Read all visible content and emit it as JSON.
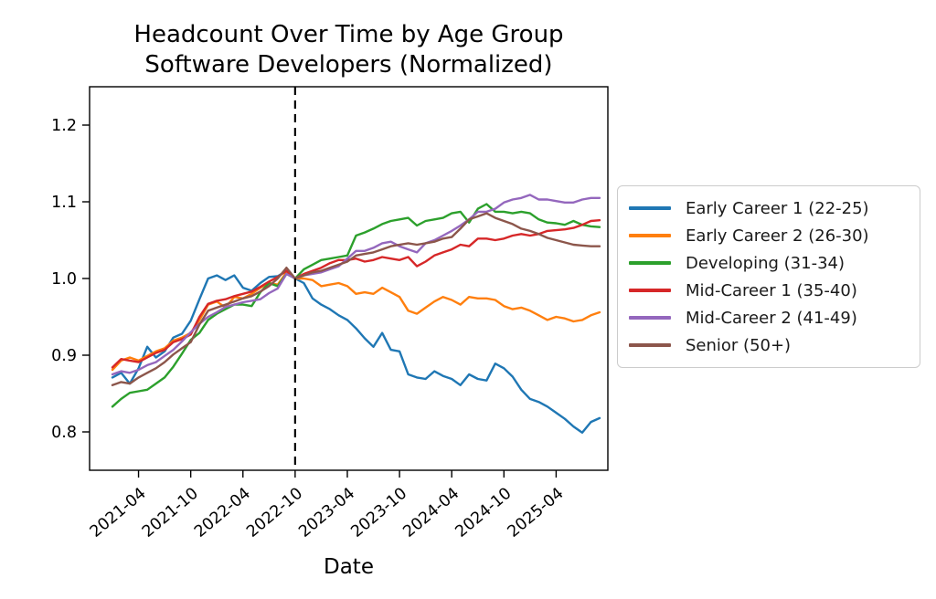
{
  "chart_data": {
    "type": "line",
    "title": "Headcount Over Time by Age Group",
    "subtitle": "Software Developers (Normalized)",
    "xlabel": "Date",
    "ylabel": "",
    "ylim": [
      0.75,
      1.25
    ],
    "grid": false,
    "legend_position": "right-outside",
    "event_line": {
      "x": "2022-10",
      "style": "dashed",
      "color": "#000000"
    },
    "x_ticks": [
      "2021-04",
      "2021-10",
      "2022-04",
      "2022-10",
      "2023-04",
      "2023-10",
      "2024-04",
      "2024-10",
      "2025-04"
    ],
    "y_ticks": [
      0.8,
      0.9,
      1.0,
      1.1,
      1.2
    ],
    "x": [
      "2021-01",
      "2021-02",
      "2021-03",
      "2021-04",
      "2021-05",
      "2021-06",
      "2021-07",
      "2021-08",
      "2021-09",
      "2021-10",
      "2021-11",
      "2021-12",
      "2022-01",
      "2022-02",
      "2022-03",
      "2022-04",
      "2022-05",
      "2022-06",
      "2022-07",
      "2022-08",
      "2022-09",
      "2022-10",
      "2022-11",
      "2022-12",
      "2023-01",
      "2023-02",
      "2023-03",
      "2023-04",
      "2023-05",
      "2023-06",
      "2023-07",
      "2023-08",
      "2023-09",
      "2023-10",
      "2023-11",
      "2023-12",
      "2024-01",
      "2024-02",
      "2024-03",
      "2024-04",
      "2024-05",
      "2024-06",
      "2024-07",
      "2024-08",
      "2024-09",
      "2024-10",
      "2024-11",
      "2024-12",
      "2025-01",
      "2025-02",
      "2025-03",
      "2025-04",
      "2025-05",
      "2025-06",
      "2025-07",
      "2025-08",
      "2025-09"
    ],
    "series": [
      {
        "name": "Early Career 1 (22-25)",
        "color": "#1f77b4",
        "values": [
          0.871,
          0.877,
          0.863,
          0.883,
          0.911,
          0.897,
          0.905,
          0.923,
          0.928,
          0.945,
          0.973,
          1.0,
          1.004,
          0.998,
          1.004,
          0.988,
          0.984,
          0.994,
          1.002,
          1.003,
          1.01,
          1.0,
          0.994,
          0.974,
          0.966,
          0.96,
          0.952,
          0.946,
          0.935,
          0.922,
          0.911,
          0.929,
          0.907,
          0.905,
          0.875,
          0.871,
          0.869,
          0.879,
          0.873,
          0.869,
          0.861,
          0.875,
          0.869,
          0.867,
          0.889,
          0.883,
          0.872,
          0.855,
          0.843,
          0.839,
          0.833,
          0.825,
          0.817,
          0.807,
          0.799,
          0.813,
          0.818
        ]
      },
      {
        "name": "Early Career 2 (26-30)",
        "color": "#ff7f0e",
        "values": [
          0.881,
          0.893,
          0.897,
          0.893,
          0.899,
          0.905,
          0.909,
          0.919,
          0.923,
          0.929,
          0.946,
          0.966,
          0.97,
          0.962,
          0.976,
          0.974,
          0.98,
          0.988,
          0.994,
          0.992,
          1.008,
          1.0,
          1.0,
          0.998,
          0.99,
          0.992,
          0.994,
          0.99,
          0.98,
          0.982,
          0.98,
          0.988,
          0.982,
          0.976,
          0.958,
          0.954,
          0.962,
          0.97,
          0.976,
          0.972,
          0.966,
          0.976,
          0.974,
          0.974,
          0.972,
          0.964,
          0.96,
          0.962,
          0.958,
          0.952,
          0.946,
          0.95,
          0.948,
          0.944,
          0.946,
          0.952,
          0.956
        ]
      },
      {
        "name": "Developing (31-34)",
        "color": "#2ca02c",
        "values": [
          0.833,
          0.843,
          0.851,
          0.853,
          0.855,
          0.863,
          0.871,
          0.885,
          0.902,
          0.92,
          0.929,
          0.946,
          0.954,
          0.96,
          0.966,
          0.966,
          0.964,
          0.982,
          0.994,
          0.99,
          1.006,
          1.0,
          1.012,
          1.018,
          1.024,
          1.026,
          1.028,
          1.03,
          1.056,
          1.06,
          1.065,
          1.071,
          1.075,
          1.077,
          1.079,
          1.069,
          1.075,
          1.077,
          1.079,
          1.085,
          1.087,
          1.073,
          1.091,
          1.097,
          1.087,
          1.087,
          1.085,
          1.087,
          1.085,
          1.077,
          1.073,
          1.072,
          1.07,
          1.075,
          1.07,
          1.068,
          1.067
        ]
      },
      {
        "name": "Mid-Career 1 (35-40)",
        "color": "#d62728",
        "values": [
          0.884,
          0.895,
          0.893,
          0.891,
          0.897,
          0.903,
          0.907,
          0.917,
          0.921,
          0.927,
          0.95,
          0.967,
          0.971,
          0.973,
          0.977,
          0.98,
          0.983,
          0.989,
          0.996,
          1.002,
          1.01,
          1.0,
          1.006,
          1.01,
          1.014,
          1.02,
          1.024,
          1.024,
          1.026,
          1.022,
          1.024,
          1.028,
          1.026,
          1.024,
          1.028,
          1.016,
          1.022,
          1.03,
          1.034,
          1.038,
          1.044,
          1.042,
          1.052,
          1.052,
          1.05,
          1.052,
          1.056,
          1.058,
          1.056,
          1.058,
          1.062,
          1.063,
          1.064,
          1.066,
          1.07,
          1.075,
          1.076
        ]
      },
      {
        "name": "Mid-Career 2 (41-49)",
        "color": "#9467bd",
        "values": [
          0.875,
          0.879,
          0.877,
          0.881,
          0.887,
          0.891,
          0.899,
          0.907,
          0.918,
          0.93,
          0.941,
          0.95,
          0.956,
          0.963,
          0.966,
          0.969,
          0.971,
          0.973,
          0.981,
          0.987,
          1.006,
          1.0,
          1.004,
          1.006,
          1.008,
          1.012,
          1.016,
          1.026,
          1.036,
          1.036,
          1.04,
          1.046,
          1.048,
          1.042,
          1.038,
          1.034,
          1.046,
          1.05,
          1.056,
          1.062,
          1.069,
          1.077,
          1.087,
          1.087,
          1.091,
          1.099,
          1.103,
          1.105,
          1.109,
          1.103,
          1.103,
          1.101,
          1.099,
          1.099,
          1.103,
          1.105,
          1.105
        ]
      },
      {
        "name": "Senior (50+)",
        "color": "#8c564b",
        "values": [
          0.861,
          0.865,
          0.863,
          0.871,
          0.877,
          0.883,
          0.891,
          0.901,
          0.909,
          0.917,
          0.94,
          0.958,
          0.962,
          0.966,
          0.97,
          0.974,
          0.977,
          0.983,
          0.99,
          1.0,
          1.014,
          1.0,
          1.004,
          1.008,
          1.01,
          1.014,
          1.018,
          1.022,
          1.03,
          1.032,
          1.034,
          1.038,
          1.042,
          1.044,
          1.046,
          1.044,
          1.046,
          1.048,
          1.052,
          1.054,
          1.065,
          1.077,
          1.081,
          1.085,
          1.079,
          1.075,
          1.071,
          1.065,
          1.062,
          1.058,
          1.053,
          1.05,
          1.047,
          1.044,
          1.043,
          1.042,
          1.042
        ]
      }
    ]
  }
}
